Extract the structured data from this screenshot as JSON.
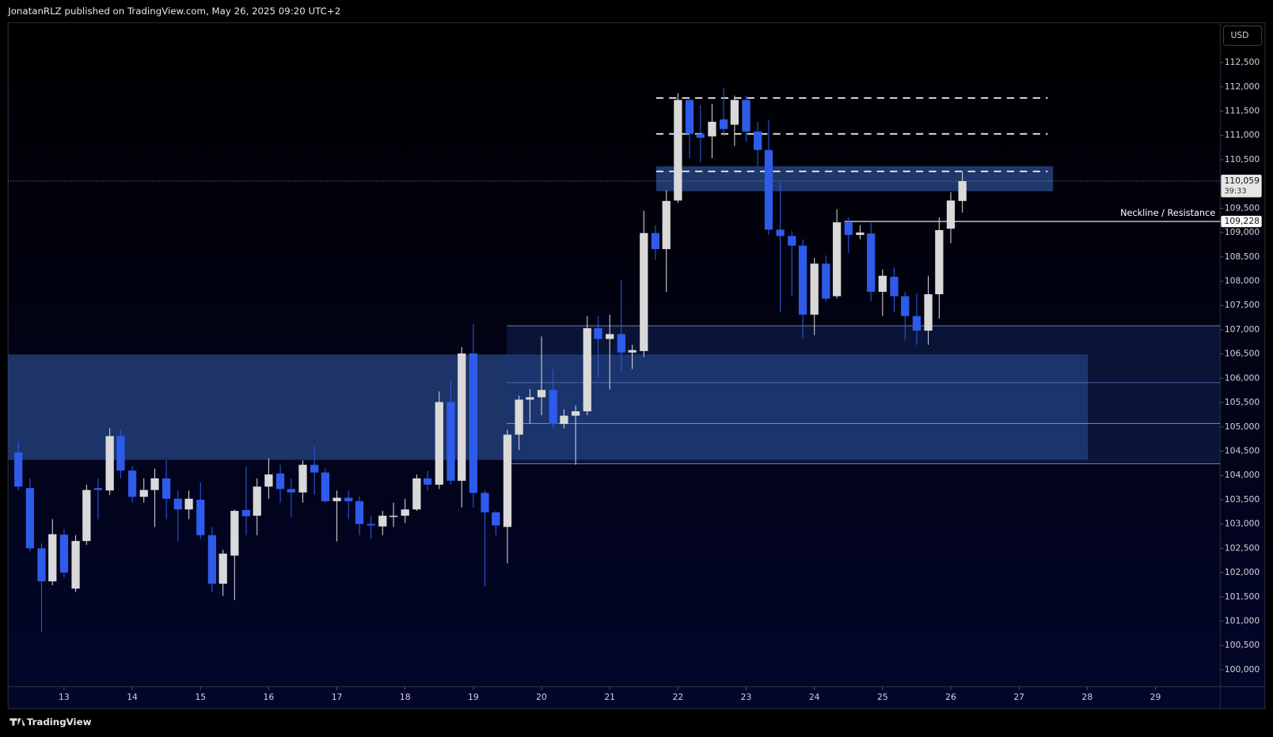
{
  "header": "JonatanRLZ published on TradingView.com, May 26, 2025 09:20 UTC+2",
  "footer": "TradingView",
  "chart_data": {
    "type": "candlestick",
    "currency": "USD",
    "up_color": "#d9d9d9",
    "down_color": "#2f5bea",
    "x": [
      12.33,
      12.5,
      12.67,
      12.83,
      13,
      13.17,
      13.33,
      13.5,
      13.67,
      13.83,
      14,
      14.17,
      14.33,
      14.5,
      14.67,
      14.83,
      15,
      15.17,
      15.33,
      15.5,
      15.67,
      15.83,
      16,
      16.17,
      16.33,
      16.5,
      16.67,
      16.83,
      17,
      17.17,
      17.33,
      17.5,
      17.67,
      17.83,
      18,
      18.17,
      18.33,
      18.5,
      18.67,
      18.83,
      19,
      19.17,
      19.33,
      19.5,
      19.67,
      19.83,
      20,
      20.17,
      20.33,
      20.5,
      20.67,
      20.83,
      21,
      21.17,
      21.33,
      21.5,
      21.67,
      21.83,
      22,
      22.17,
      22.33,
      22.5,
      22.67,
      22.83,
      23,
      23.17,
      23.33,
      23.5,
      23.67,
      23.83,
      24,
      24.17,
      24.33,
      24.5,
      24.67,
      24.83,
      25,
      25.17,
      25.33,
      25.5,
      25.67,
      25.83,
      26,
      26.17
    ],
    "open": [
      104470,
      103740,
      102500,
      101820,
      102780,
      101670,
      102650,
      103740,
      103690,
      104810,
      104100,
      103560,
      103700,
      103940,
      103520,
      103300,
      103500,
      102770,
      101770,
      102350,
      103290,
      103170,
      103770,
      104040,
      103720,
      103650,
      104220,
      104060,
      103470,
      103540,
      103470,
      103000,
      102950,
      103150,
      103170,
      103300,
      103940,
      103810,
      105510,
      103890,
      106510,
      103640,
      103240,
      102940,
      104840,
      105560,
      105610,
      105760,
      105060,
      105230,
      105320,
      107030,
      106810,
      106910,
      106530,
      106560,
      108990,
      108660,
      109660,
      111730,
      111030,
      110980,
      111330,
      111220,
      111730,
      111080,
      110700,
      109060,
      108930,
      108730,
      107310,
      108360,
      107690,
      109210,
      108950,
      108980,
      107780,
      108090,
      107690,
      107280,
      106980,
      107730,
      109080,
      109650
    ],
    "high": [
      104690,
      103940,
      102600,
      103100,
      102900,
      102770,
      103810,
      103940,
      104970,
      104940,
      104190,
      103940,
      104140,
      104310,
      103690,
      103690,
      103860,
      102940,
      102470,
      103300,
      104190,
      103940,
      104350,
      104220,
      103940,
      104310,
      104600,
      104140,
      103690,
      103690,
      103570,
      103170,
      103270,
      103440,
      103520,
      104020,
      104100,
      105730,
      105940,
      106640,
      107110,
      103690,
      103270,
      104940,
      105640,
      105780,
      106860,
      106190,
      105360,
      105440,
      107280,
      107280,
      107310,
      108030,
      106690,
      109450,
      109150,
      109870,
      111870,
      111780,
      111620,
      111650,
      111980,
      111820,
      111820,
      111280,
      111320,
      110030,
      109030,
      108860,
      108480,
      108530,
      109480,
      109310,
      109150,
      109200,
      108240,
      108280,
      107780,
      107750,
      108110,
      109310,
      109830,
      110250
    ],
    "low": [
      103690,
      102440,
      100770,
      101740,
      101900,
      101600,
      102570,
      103100,
      103600,
      103940,
      103440,
      103440,
      102940,
      103100,
      102640,
      103100,
      102690,
      101600,
      101520,
      101430,
      102770,
      102770,
      103520,
      103440,
      103140,
      103440,
      103600,
      103440,
      102640,
      103100,
      102770,
      102690,
      102770,
      102940,
      103020,
      103270,
      103690,
      103720,
      103810,
      103340,
      103340,
      101720,
      102770,
      102190,
      104520,
      105070,
      105240,
      104970,
      104970,
      104220,
      105240,
      106020,
      105770,
      106140,
      106190,
      106440,
      108440,
      107780,
      109610,
      110530,
      110450,
      110530,
      110980,
      110780,
      110870,
      110360,
      108950,
      107360,
      107690,
      106810,
      106890,
      107580,
      107640,
      108580,
      108860,
      107580,
      107280,
      107360,
      106780,
      106690,
      106690,
      107230,
      108780,
      109410
    ],
    "close": [
      103770,
      102500,
      101820,
      102790,
      102000,
      102650,
      103700,
      103700,
      104810,
      104100,
      103560,
      103700,
      103940,
      103520,
      103300,
      103520,
      102770,
      101770,
      102390,
      103270,
      103160,
      103770,
      104020,
      103720,
      103650,
      104220,
      104060,
      103470,
      103540,
      103470,
      103000,
      102970,
      103170,
      103170,
      103300,
      103940,
      103810,
      105510,
      103890,
      106510,
      103640,
      103240,
      102970,
      104840,
      105560,
      105610,
      105760,
      105060,
      105230,
      105320,
      107030,
      106810,
      106910,
      106530,
      106580,
      108990,
      108660,
      109650,
      111730,
      111030,
      110950,
      111280,
      111130,
      111730,
      111080,
      110700,
      109060,
      108930,
      108730,
      107310,
      108360,
      107640,
      109210,
      108950,
      109000,
      107780,
      108110,
      107690,
      107280,
      106980,
      107730,
      109050,
      109660,
      110059
    ],
    "xlim": [
      12.18,
      29.95
    ],
    "ylim": [
      99650,
      113320
    ],
    "xticks": [
      13,
      14,
      15,
      16,
      17,
      18,
      19,
      20,
      21,
      22,
      23,
      24,
      25,
      26,
      27,
      28,
      29
    ],
    "yticks": [
      {
        "value": 100000,
        "label": "100,000"
      },
      {
        "value": 100500,
        "label": "100,500"
      },
      {
        "value": 101000,
        "label": "101,000"
      },
      {
        "value": 101500,
        "label": "101,500"
      },
      {
        "value": 102000,
        "label": "102,000"
      },
      {
        "value": 102500,
        "label": "102,500"
      },
      {
        "value": 103000,
        "label": "103,000"
      },
      {
        "value": 103500,
        "label": "103,500"
      },
      {
        "value": 104000,
        "label": "104,000"
      },
      {
        "value": 104500,
        "label": "104,500"
      },
      {
        "value": 105000,
        "label": "105,000"
      },
      {
        "value": 105500,
        "label": "105,500"
      },
      {
        "value": 106000,
        "label": "106,000"
      },
      {
        "value": 106500,
        "label": "106,500"
      },
      {
        "value": 107000,
        "label": "107,000"
      },
      {
        "value": 107500,
        "label": "107,500"
      },
      {
        "value": 108000,
        "label": "108,000"
      },
      {
        "value": 108500,
        "label": "108,500"
      },
      {
        "value": 109000,
        "label": "109,000"
      },
      {
        "value": 109500,
        "label": "109,500"
      },
      {
        "value": 110000,
        "label": "110,000"
      },
      {
        "value": 110500,
        "label": "110,500"
      },
      {
        "value": 111000,
        "label": "111,000"
      },
      {
        "value": 111500,
        "label": "111,500"
      },
      {
        "value": 112000,
        "label": "112,000"
      },
      {
        "value": 112500,
        "label": "112,500"
      }
    ],
    "zones": [
      {
        "x": [
          12.18,
          28.01
        ],
        "y": [
          104320,
          106490
        ],
        "color": "rgba(52,92,170,0.55)"
      },
      {
        "x": [
          19.49,
          29.95
        ],
        "y": [
          104240,
          107080
        ],
        "color": "rgba(30,55,120,0.35)"
      },
      {
        "x": [
          21.68,
          27.5
        ],
        "y": [
          109850,
          110365
        ],
        "color": "rgba(52,92,170,0.6)"
      }
    ],
    "levels": [
      {
        "y": 107080,
        "x": [
          19.49,
          29.95
        ],
        "color": "#9aa4c4",
        "dash": false
      },
      {
        "y": 105910,
        "x": [
          19.49,
          29.95
        ],
        "color": "#5a78c0",
        "dash": false
      },
      {
        "y": 105070,
        "x": [
          19.49,
          29.95
        ],
        "color": "#9aa4c4",
        "dash": false
      },
      {
        "y": 104240,
        "x": [
          19.49,
          29.95
        ],
        "color": "#9aa4c4",
        "dash": false
      },
      {
        "y": 111770,
        "x": [
          21.68,
          27.42
        ],
        "color": "#ffffff",
        "dash": true
      },
      {
        "y": 111030,
        "x": [
          21.68,
          27.42
        ],
        "color": "#ffffff",
        "dash": true
      },
      {
        "y": 110260,
        "x": [
          21.68,
          27.42
        ],
        "color": "#ffffff",
        "dash": true
      }
    ],
    "neckline": {
      "value": 109228,
      "label": "109,228",
      "text": "Neckline / Resistance",
      "x": [
        24.44,
        29.95
      ],
      "color": "#ffffff"
    },
    "last_price": {
      "value": 110059,
      "label": "110,059",
      "countdown": "39:33"
    }
  }
}
